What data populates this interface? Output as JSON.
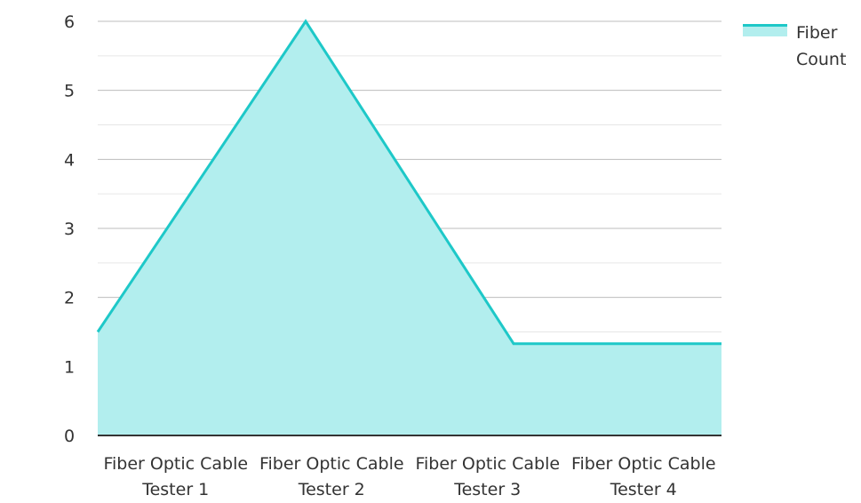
{
  "chart_data": {
    "type": "area",
    "categories": [
      [
        "Fiber Optic Cable",
        "Tester 1"
      ],
      [
        "Fiber Optic Cable",
        "Tester 2"
      ],
      [
        "Fiber Optic Cable",
        "Tester 3"
      ],
      [
        "Fiber Optic Cable",
        "Tester 4"
      ]
    ],
    "series": [
      {
        "name": "Fiber Count",
        "values": [
          1.5,
          6,
          1.33,
          1.33
        ]
      }
    ],
    "ylim": [
      0,
      6
    ],
    "yticks": [
      0,
      1,
      2,
      3,
      4,
      5,
      6
    ],
    "grid": true,
    "minor_grid": true,
    "legend_position": "top-right",
    "colors": {
      "line": "#1ec8c8",
      "fill": "#b2eeee",
      "grid_major": "#bdbdbd",
      "grid_minor": "#e6e6e6",
      "axis": "#333333",
      "text": "#333333"
    }
  },
  "legend": {
    "label": "Fiber Count"
  }
}
